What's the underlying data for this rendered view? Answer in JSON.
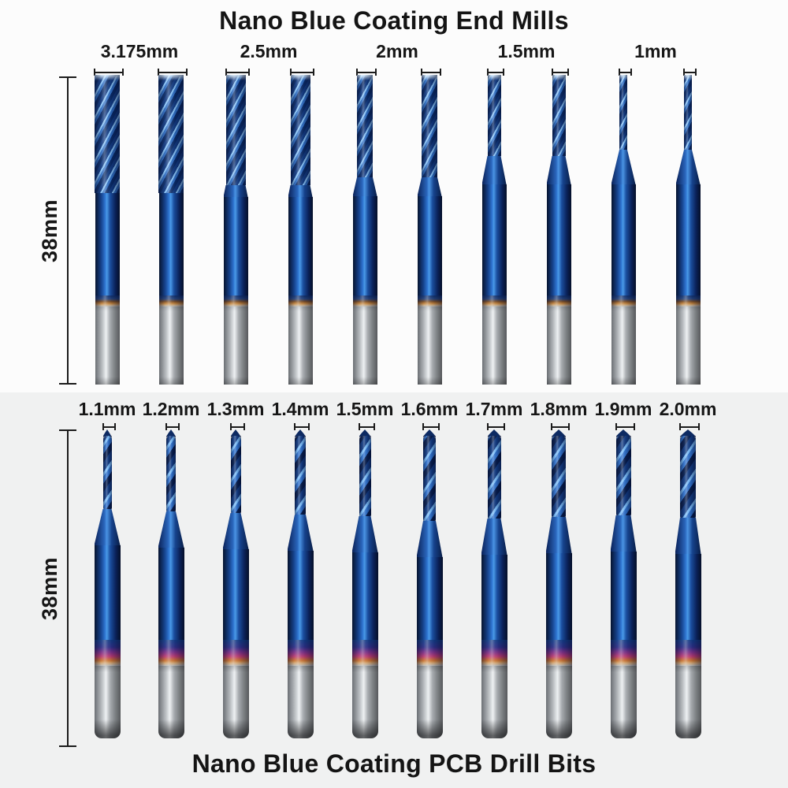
{
  "top_section": {
    "title": "Nano Blue Coating End Mills",
    "length_label": "38mm",
    "size_labels": [
      "3.175mm",
      "2.5mm",
      "2mm",
      "1.5mm",
      "1mm"
    ]
  },
  "bottom_section": {
    "title": "Nano Blue Coating PCB Drill Bits",
    "length_label": "38mm",
    "size_labels": [
      "1.1mm",
      "1.2mm",
      "1.3mm",
      "1.4mm",
      "1.5mm",
      "1.6mm",
      "1.7mm",
      "1.8mm",
      "1.9mm",
      "2.0mm"
    ]
  },
  "colors": {
    "background_top": "#fcfcfc",
    "background_bottom": "#f0f1f1",
    "text": "#161616",
    "coating_blue": "#1d53a8",
    "coating_highlight": "#4a9ae8",
    "coating_dark": "#0a2158",
    "heat_band_bronze": "#c08038",
    "heat_band_magenta": "#b83a70",
    "shank_silver": "#c6cacc"
  }
}
